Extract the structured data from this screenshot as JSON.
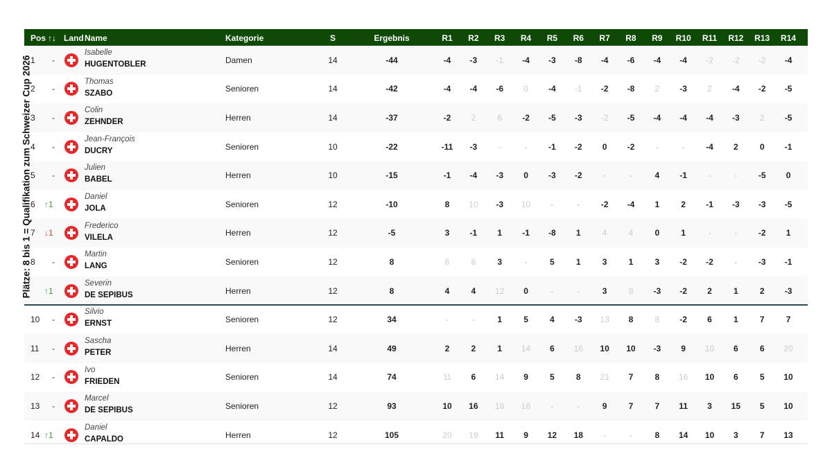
{
  "side_label": "Plätze: 8 bis 1 = Qualifikation zum Schweizer Cup 2026",
  "table": {
    "columns": [
      "Pos",
      "↑↓",
      "Land",
      "Name",
      "Kategorie",
      "S",
      "Ergebnis",
      "R1",
      "R2",
      "R3",
      "R4",
      "R5",
      "R6",
      "R7",
      "R8",
      "R9",
      "R10",
      "R11",
      "R12",
      "R13",
      "R14"
    ],
    "rows": [
      {
        "pos": "1",
        "move": "-",
        "first": "Isabelle",
        "last": "HUGENTOBLER",
        "category": "Damen",
        "s": "14",
        "result": "-44",
        "rounds": [
          "-4",
          "-3",
          {
            "text": "-1",
            "dropped": true
          },
          "-4",
          "-3",
          "-8",
          "-4",
          "-6",
          "-4",
          "-4",
          {
            "text": "-2",
            "dropped": true
          },
          {
            "text": "-2",
            "dropped": true
          },
          {
            "text": "-2",
            "dropped": true
          },
          "-4"
        ]
      },
      {
        "pos": "2",
        "move": "-",
        "first": "Thomas",
        "last": "SZABO",
        "category": "Senioren",
        "s": "14",
        "result": "-42",
        "rounds": [
          "-4",
          "-4",
          "-6",
          {
            "text": "0",
            "dropped": true
          },
          "-4",
          {
            "text": "-1",
            "dropped": true
          },
          "-2",
          "-8",
          {
            "text": "2",
            "dropped": true
          },
          "-3",
          {
            "text": "2",
            "dropped": true
          },
          "-4",
          "-2",
          "-5"
        ]
      },
      {
        "pos": "3",
        "move": "-",
        "first": "Colin",
        "last": "ZEHNDER",
        "category": "Herren",
        "s": "14",
        "result": "-37",
        "rounds": [
          "-2",
          {
            "text": "2",
            "dropped": true
          },
          {
            "text": "6",
            "dropped": true
          },
          "-2",
          "-5",
          "-3",
          {
            "text": "-2",
            "dropped": true
          },
          "-5",
          "-4",
          "-4",
          "-4",
          "-3",
          {
            "text": "2",
            "dropped": true
          },
          "-5"
        ]
      },
      {
        "pos": "4",
        "move": "-",
        "first": "Jean-François",
        "last": "DUCRY",
        "category": "Senioren",
        "s": "10",
        "result": "-22",
        "rounds": [
          "-11",
          "-3",
          "-",
          "-",
          "-1",
          "-2",
          "0",
          "-2",
          "-",
          "-",
          "-4",
          "2",
          "0",
          "-1"
        ]
      },
      {
        "pos": "5",
        "move": "-",
        "first": "Julien",
        "last": "BABEL",
        "category": "Herren",
        "s": "10",
        "result": "-15",
        "rounds": [
          "-1",
          "-4",
          "-3",
          "0",
          "-3",
          "-2",
          "-",
          "-",
          "4",
          "-1",
          "-",
          "-",
          "-5",
          "0"
        ]
      },
      {
        "pos": "6",
        "move": "↑1",
        "first": "Daniel",
        "last": "JOLA",
        "category": "Senioren",
        "s": "12",
        "result": "-10",
        "rounds": [
          "8",
          {
            "text": "10",
            "dropped": true
          },
          "-3",
          {
            "text": "10",
            "dropped": true
          },
          "-",
          "-",
          "-2",
          "-4",
          "1",
          "2",
          "-1",
          "-3",
          "-3",
          "-5"
        ]
      },
      {
        "pos": "7",
        "move": "↓1",
        "first": "Frederico",
        "last": "VILELA",
        "category": "Herren",
        "s": "12",
        "result": "-5",
        "rounds": [
          "3",
          "-1",
          "1",
          "-1",
          "-8",
          "1",
          {
            "text": "4",
            "dropped": true
          },
          {
            "text": "4",
            "dropped": true
          },
          "0",
          "1",
          "-",
          "-",
          "-2",
          "1"
        ]
      },
      {
        "pos": "8",
        "move": "-",
        "first": "Martin",
        "last": "LANG",
        "category": "Senioren",
        "s": "12",
        "result": "8",
        "rounds": [
          {
            "text": "6",
            "dropped": true
          },
          {
            "text": "6",
            "dropped": true
          },
          "3",
          "-",
          "5",
          "1",
          "3",
          "1",
          "3",
          "-2",
          "-2",
          "-",
          "-3",
          "-1"
        ]
      },
      {
        "pos": null,
        "move": "↑1",
        "first": "Severin",
        "last": "DE SEPIBUS",
        "category": "Herren",
        "s": "12",
        "result": "8",
        "rounds": [
          "4",
          "4",
          {
            "text": "12",
            "dropped": true
          },
          "0",
          "-",
          "-",
          "3",
          {
            "text": "8",
            "dropped": true
          },
          "-3",
          "-2",
          "2",
          "1",
          "2",
          "-3"
        ]
      },
      {
        "pos": "10",
        "move": "-",
        "first": "Silvio",
        "last": "ERNST",
        "category": "Senioren",
        "s": "12",
        "result": "34",
        "rounds": [
          "-",
          "-",
          "1",
          "5",
          "4",
          "-3",
          {
            "text": "13",
            "dropped": true
          },
          "8",
          {
            "text": "8",
            "dropped": true
          },
          "-2",
          "6",
          "1",
          "7",
          "7"
        ]
      },
      {
        "pos": "11",
        "move": "-",
        "first": "Sascha",
        "last": "PETER",
        "category": "Herren",
        "s": "14",
        "result": "49",
        "rounds": [
          "2",
          "2",
          "1",
          {
            "text": "14",
            "dropped": true
          },
          "6",
          {
            "text": "16",
            "dropped": true
          },
          "10",
          "10",
          "-3",
          "9",
          {
            "text": "10",
            "dropped": true
          },
          "6",
          "6",
          {
            "text": "20",
            "dropped": true
          }
        ]
      },
      {
        "pos": "12",
        "move": "-",
        "first": "Ivo",
        "last": "FRIEDEN",
        "category": "Senioren",
        "s": "14",
        "result": "74",
        "rounds": [
          {
            "text": "11",
            "dropped": true
          },
          "6",
          {
            "text": "14",
            "dropped": true
          },
          "9",
          "5",
          "8",
          {
            "text": "21",
            "dropped": true
          },
          "7",
          "8",
          {
            "text": "16",
            "dropped": true
          },
          "10",
          "6",
          "5",
          "10"
        ]
      },
      {
        "pos": "13",
        "move": "-",
        "first": "Marcel",
        "last": "DE SEPIBUS",
        "category": "Senioren",
        "s": "12",
        "result": "93",
        "rounds": [
          "10",
          "16",
          {
            "text": "18",
            "dropped": true
          },
          {
            "text": "16",
            "dropped": true
          },
          "-",
          "-",
          "9",
          "7",
          "7",
          "11",
          "3",
          "15",
          "5",
          "10"
        ]
      },
      {
        "pos": "14",
        "move": "↑1",
        "first": "Daniel",
        "last": "CAPALDO",
        "category": "Herren",
        "s": "12",
        "result": "105",
        "rounds": [
          {
            "text": "20",
            "dropped": true
          },
          {
            "text": "19",
            "dropped": true
          },
          "11",
          "9",
          "12",
          "18",
          "-",
          "-",
          "8",
          "14",
          "10",
          "3",
          "7",
          "13"
        ]
      }
    ],
    "separator_after": 9
  }
}
